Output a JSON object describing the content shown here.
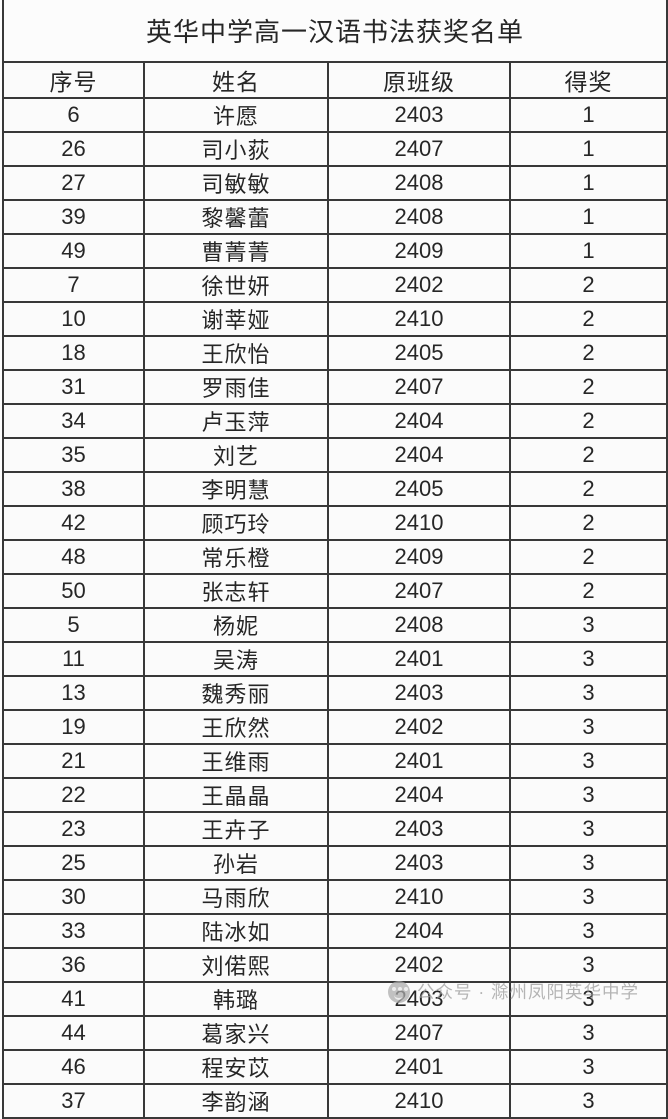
{
  "title": "英华中学高一汉语书法获奖名单",
  "table": {
    "columns": [
      "序号",
      "姓名",
      "原班级",
      "得奖"
    ],
    "rows": [
      {
        "seq": "6",
        "name": "许愿",
        "class": "2403",
        "award": "1"
      },
      {
        "seq": "26",
        "name": "司小荻",
        "class": "2407",
        "award": "1"
      },
      {
        "seq": "27",
        "name": "司敏敏",
        "class": "2408",
        "award": "1"
      },
      {
        "seq": "39",
        "name": "黎馨蕾",
        "class": "2408",
        "award": "1"
      },
      {
        "seq": "49",
        "name": "曹菁菁",
        "class": "2409",
        "award": "1"
      },
      {
        "seq": "7",
        "name": "徐世妍",
        "class": "2402",
        "award": "2"
      },
      {
        "seq": "10",
        "name": "谢莘娅",
        "class": "2410",
        "award": "2"
      },
      {
        "seq": "18",
        "name": "王欣怡",
        "class": "2405",
        "award": "2"
      },
      {
        "seq": "31",
        "name": "罗雨佳",
        "class": "2407",
        "award": "2"
      },
      {
        "seq": "34",
        "name": "卢玉萍",
        "class": "2404",
        "award": "2"
      },
      {
        "seq": "35",
        "name": "刘艺",
        "class": "2404",
        "award": "2"
      },
      {
        "seq": "38",
        "name": "李明慧",
        "class": "2405",
        "award": "2"
      },
      {
        "seq": "42",
        "name": "顾巧玲",
        "class": "2410",
        "award": "2"
      },
      {
        "seq": "48",
        "name": "常乐橙",
        "class": "2409",
        "award": "2"
      },
      {
        "seq": "50",
        "name": "张志轩",
        "class": "2407",
        "award": "2"
      },
      {
        "seq": "5",
        "name": "杨妮",
        "class": "2408",
        "award": "3"
      },
      {
        "seq": "11",
        "name": "吴涛",
        "class": "2401",
        "award": "3"
      },
      {
        "seq": "13",
        "name": "魏秀丽",
        "class": "2403",
        "award": "3"
      },
      {
        "seq": "19",
        "name": "王欣然",
        "class": "2402",
        "award": "3"
      },
      {
        "seq": "21",
        "name": "王维雨",
        "class": "2401",
        "award": "3"
      },
      {
        "seq": "22",
        "name": "王晶晶",
        "class": "2404",
        "award": "3"
      },
      {
        "seq": "23",
        "name": "王卉子",
        "class": "2403",
        "award": "3"
      },
      {
        "seq": "25",
        "name": "孙岩",
        "class": "2403",
        "award": "3"
      },
      {
        "seq": "30",
        "name": "马雨欣",
        "class": "2410",
        "award": "3"
      },
      {
        "seq": "33",
        "name": "陆冰如",
        "class": "2404",
        "award": "3"
      },
      {
        "seq": "36",
        "name": "刘偌熙",
        "class": "2402",
        "award": "3"
      },
      {
        "seq": "41",
        "name": "韩璐",
        "class": "2403",
        "award": "3"
      },
      {
        "seq": "44",
        "name": "葛家兴",
        "class": "2407",
        "award": "3"
      },
      {
        "seq": "46",
        "name": "程安苡",
        "class": "2401",
        "award": "3"
      },
      {
        "seq": "37",
        "name": "李韵涵",
        "class": "2410",
        "award": "3"
      }
    ]
  },
  "watermark": {
    "icon": "wechat-official-account-icon",
    "text": "公众号 · 滁州凤阳英华中学"
  },
  "colors": {
    "border": "#383838",
    "text": "#262626",
    "cell_background": "#fbfbfb",
    "watermark": "#9a9a9a"
  }
}
